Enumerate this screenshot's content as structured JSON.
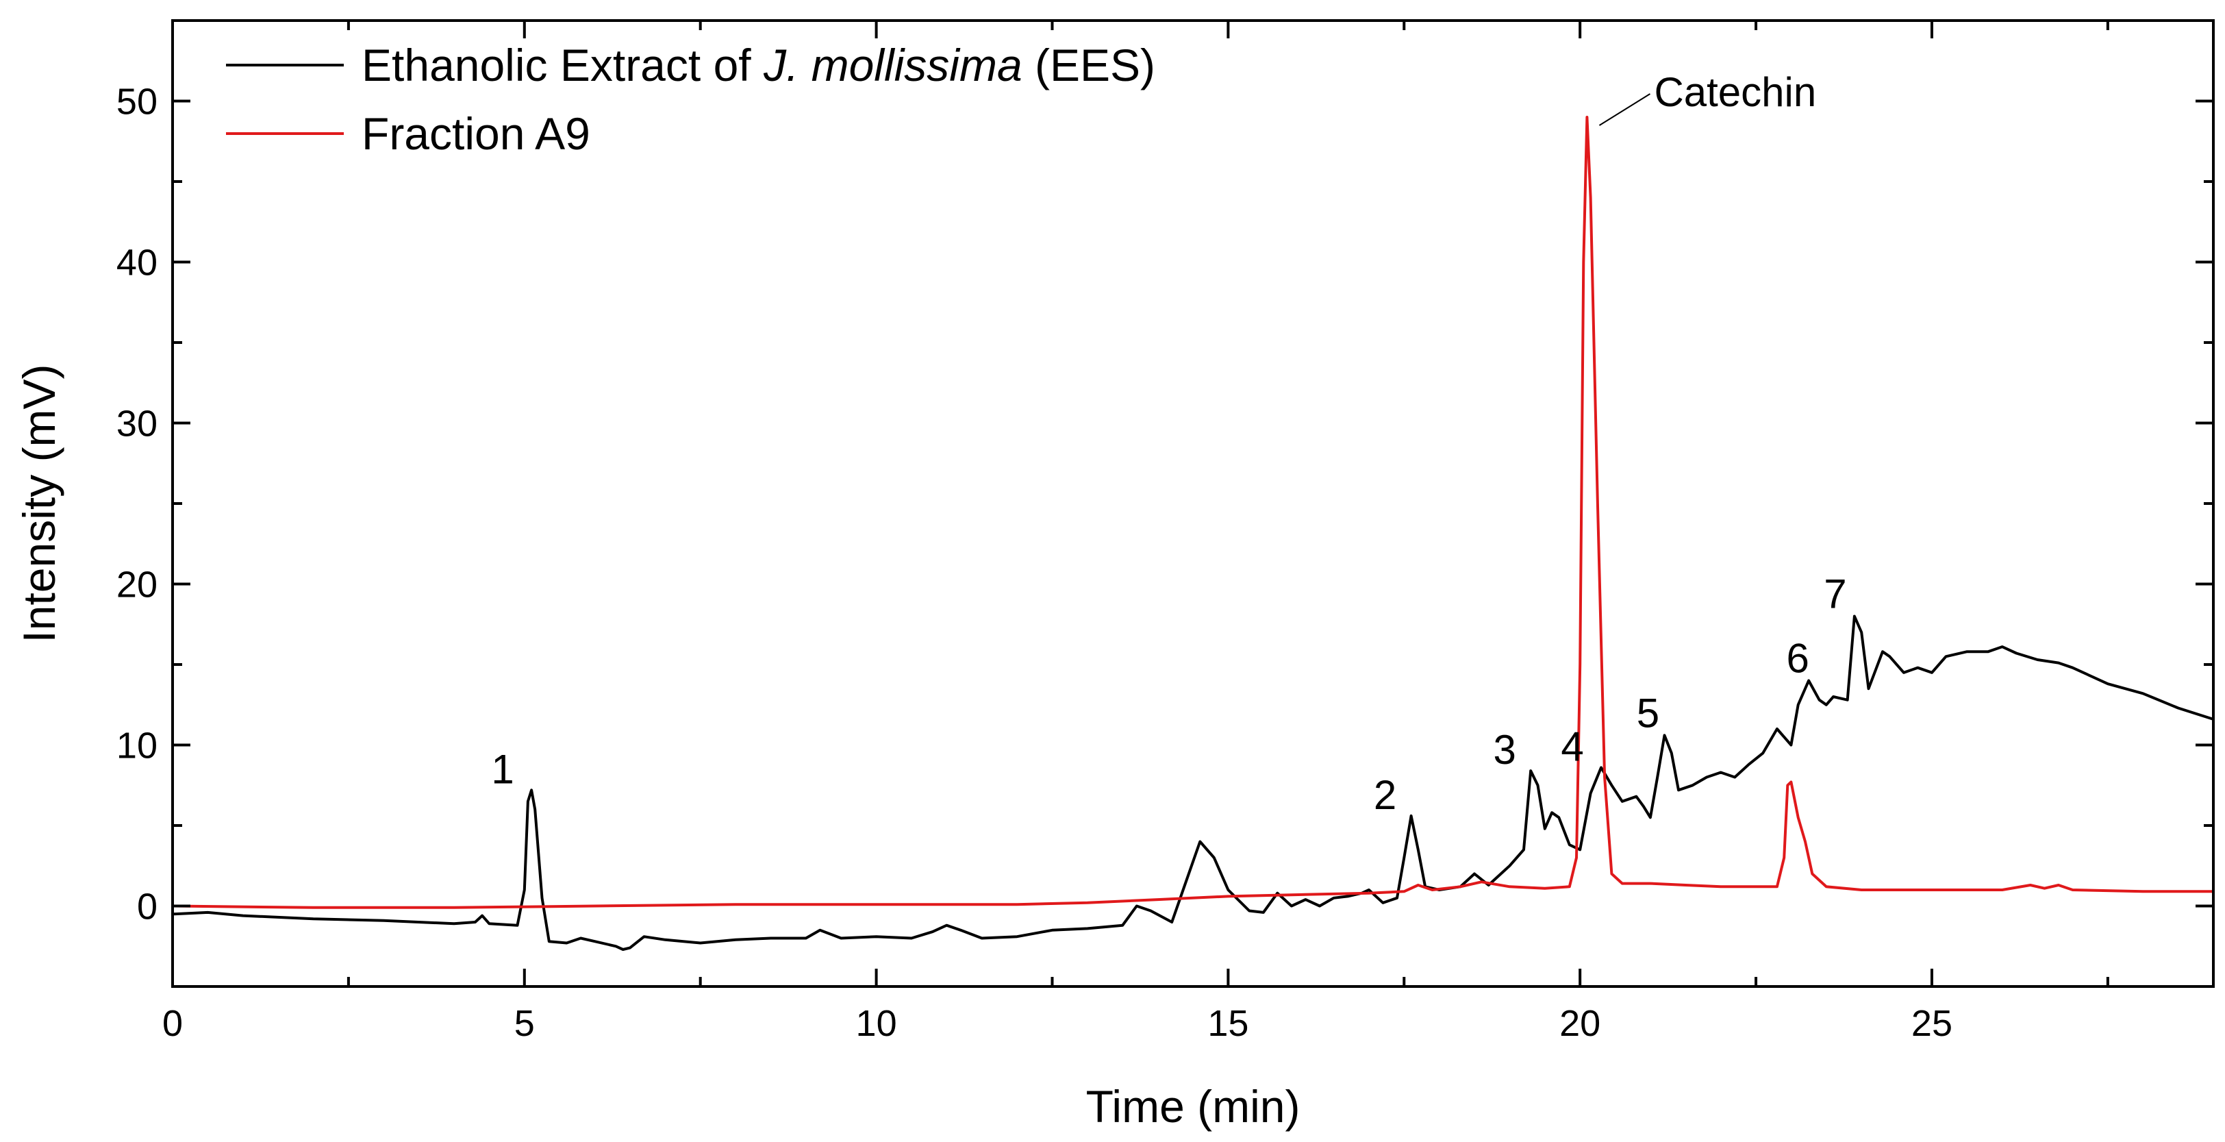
{
  "chart_data": {
    "type": "line",
    "title": "",
    "xlabel": "Time (min)",
    "ylabel": "Intensity (mV)",
    "xlim": [
      0,
      29
    ],
    "ylim": [
      -5,
      55
    ],
    "x_ticks": [
      0,
      5,
      10,
      15,
      20,
      25
    ],
    "x_tick_labels": [
      "0",
      "5",
      "10",
      "15",
      "20",
      "25"
    ],
    "y_ticks": [
      0,
      10,
      20,
      30,
      40,
      50
    ],
    "y_tick_labels": [
      "0",
      "10",
      "20",
      "30",
      "40",
      "50"
    ],
    "grid": false,
    "legend_position": "top-left",
    "legend": [
      {
        "series": 0,
        "parts": [
          {
            "text": "Ethanolic Extract of ",
            "italic": false
          },
          {
            "text": "J. mollissima",
            "italic": true
          },
          {
            "text": " (EES)",
            "italic": false
          }
        ]
      },
      {
        "series": 1,
        "parts": [
          {
            "text": "Fraction A9",
            "italic": false
          }
        ]
      }
    ],
    "series": [
      {
        "name": "Ethanolic Extract of J. mollissima (EES)",
        "color": "#000000",
        "points": [
          [
            0,
            -0.5
          ],
          [
            0.5,
            -0.4
          ],
          [
            1,
            -0.6
          ],
          [
            2,
            -0.8
          ],
          [
            3,
            -0.9
          ],
          [
            4,
            -1.1
          ],
          [
            4.3,
            -1.0
          ],
          [
            4.4,
            -0.6
          ],
          [
            4.5,
            -1.1
          ],
          [
            4.9,
            -1.2
          ],
          [
            5.0,
            1.0
          ],
          [
            5.05,
            6.5
          ],
          [
            5.1,
            7.2
          ],
          [
            5.15,
            6.0
          ],
          [
            5.25,
            0.5
          ],
          [
            5.35,
            -2.2
          ],
          [
            5.6,
            -2.3
          ],
          [
            5.8,
            -2.0
          ],
          [
            6,
            -2.2
          ],
          [
            6.3,
            -2.5
          ],
          [
            6.4,
            -2.7
          ],
          [
            6.5,
            -2.6
          ],
          [
            6.7,
            -1.9
          ],
          [
            7,
            -2.1
          ],
          [
            7.5,
            -2.3
          ],
          [
            8,
            -2.1
          ],
          [
            8.5,
            -2.0
          ],
          [
            9,
            -2.0
          ],
          [
            9.2,
            -1.5
          ],
          [
            9.5,
            -2.0
          ],
          [
            10,
            -1.9
          ],
          [
            10.5,
            -2.0
          ],
          [
            10.8,
            -1.6
          ],
          [
            11,
            -1.2
          ],
          [
            11.2,
            -1.5
          ],
          [
            11.5,
            -2.0
          ],
          [
            12,
            -1.9
          ],
          [
            12.5,
            -1.5
          ],
          [
            13,
            -1.4
          ],
          [
            13.5,
            -1.2
          ],
          [
            13.7,
            0.0
          ],
          [
            13.9,
            -0.3
          ],
          [
            14.2,
            -1.0
          ],
          [
            14.4,
            1.5
          ],
          [
            14.6,
            4.0
          ],
          [
            14.8,
            3.0
          ],
          [
            15.0,
            1.0
          ],
          [
            15.3,
            -0.3
          ],
          [
            15.5,
            -0.4
          ],
          [
            15.7,
            0.8
          ],
          [
            15.9,
            0.0
          ],
          [
            16.1,
            0.4
          ],
          [
            16.3,
            0.0
          ],
          [
            16.5,
            0.5
          ],
          [
            16.7,
            0.6
          ],
          [
            16.9,
            0.8
          ],
          [
            17.0,
            1.0
          ],
          [
            17.2,
            0.2
          ],
          [
            17.4,
            0.5
          ],
          [
            17.5,
            3.0
          ],
          [
            17.6,
            5.6
          ],
          [
            17.7,
            3.5
          ],
          [
            17.8,
            1.2
          ],
          [
            18.0,
            1.0
          ],
          [
            18.3,
            1.2
          ],
          [
            18.5,
            2.0
          ],
          [
            18.7,
            1.3
          ],
          [
            19.0,
            2.5
          ],
          [
            19.2,
            3.5
          ],
          [
            19.3,
            8.4
          ],
          [
            19.4,
            7.5
          ],
          [
            19.5,
            4.8
          ],
          [
            19.6,
            5.8
          ],
          [
            19.7,
            5.5
          ],
          [
            19.85,
            3.8
          ],
          [
            20.0,
            3.5
          ],
          [
            20.15,
            7.0
          ],
          [
            20.3,
            8.6
          ],
          [
            20.45,
            7.5
          ],
          [
            20.6,
            6.5
          ],
          [
            20.8,
            6.8
          ],
          [
            20.9,
            6.2
          ],
          [
            21.0,
            5.5
          ],
          [
            21.1,
            8.0
          ],
          [
            21.2,
            10.6
          ],
          [
            21.3,
            9.5
          ],
          [
            21.4,
            7.2
          ],
          [
            21.6,
            7.5
          ],
          [
            21.8,
            8.0
          ],
          [
            22.0,
            8.3
          ],
          [
            22.2,
            8.0
          ],
          [
            22.4,
            8.8
          ],
          [
            22.6,
            9.5
          ],
          [
            22.8,
            11.0
          ],
          [
            22.9,
            10.5
          ],
          [
            23.0,
            10.0
          ],
          [
            23.1,
            12.5
          ],
          [
            23.25,
            14.0
          ],
          [
            23.4,
            12.8
          ],
          [
            23.5,
            12.5
          ],
          [
            23.6,
            13.0
          ],
          [
            23.8,
            12.8
          ],
          [
            23.9,
            18.0
          ],
          [
            24.0,
            17.0
          ],
          [
            24.1,
            13.5
          ],
          [
            24.3,
            15.8
          ],
          [
            24.4,
            15.5
          ],
          [
            24.6,
            14.5
          ],
          [
            24.8,
            14.8
          ],
          [
            25.0,
            14.5
          ],
          [
            25.2,
            15.5
          ],
          [
            25.5,
            15.8
          ],
          [
            25.8,
            15.8
          ],
          [
            26.0,
            16.1
          ],
          [
            26.2,
            15.7
          ],
          [
            26.5,
            15.3
          ],
          [
            26.8,
            15.1
          ],
          [
            27,
            14.8
          ],
          [
            27.5,
            13.8
          ],
          [
            28,
            13.2
          ],
          [
            28.5,
            12.3
          ],
          [
            29,
            11.6
          ]
        ]
      },
      {
        "name": "Fraction A9",
        "color": "#e0191b",
        "points": [
          [
            0,
            0.0
          ],
          [
            2,
            -0.1
          ],
          [
            4,
            -0.1
          ],
          [
            6,
            0.0
          ],
          [
            8,
            0.1
          ],
          [
            10,
            0.1
          ],
          [
            12,
            0.1
          ],
          [
            13,
            0.2
          ],
          [
            14,
            0.4
          ],
          [
            15,
            0.6
          ],
          [
            16,
            0.7
          ],
          [
            17,
            0.8
          ],
          [
            17.5,
            0.9
          ],
          [
            17.7,
            1.3
          ],
          [
            17.9,
            1.0
          ],
          [
            18.3,
            1.2
          ],
          [
            18.6,
            1.5
          ],
          [
            19,
            1.2
          ],
          [
            19.5,
            1.1
          ],
          [
            19.85,
            1.2
          ],
          [
            19.95,
            3.0
          ],
          [
            20.0,
            15.0
          ],
          [
            20.05,
            40.0
          ],
          [
            20.1,
            49.0
          ],
          [
            20.15,
            44.0
          ],
          [
            20.25,
            25.0
          ],
          [
            20.35,
            8.0
          ],
          [
            20.45,
            2.0
          ],
          [
            20.6,
            1.4
          ],
          [
            21,
            1.4
          ],
          [
            21.5,
            1.3
          ],
          [
            22,
            1.2
          ],
          [
            22.5,
            1.2
          ],
          [
            22.8,
            1.2
          ],
          [
            22.9,
            3.0
          ],
          [
            22.95,
            7.5
          ],
          [
            23.0,
            7.7
          ],
          [
            23.1,
            5.5
          ],
          [
            23.2,
            4.0
          ],
          [
            23.3,
            2.0
          ],
          [
            23.5,
            1.2
          ],
          [
            24,
            1.0
          ],
          [
            25,
            1.0
          ],
          [
            26,
            1.0
          ],
          [
            26.4,
            1.3
          ],
          [
            26.6,
            1.1
          ],
          [
            26.8,
            1.3
          ],
          [
            27,
            1.0
          ],
          [
            28,
            0.9
          ],
          [
            29,
            0.9
          ]
        ]
      }
    ],
    "annotations": [
      {
        "text": "1",
        "x": 5.1,
        "y": 7.2
      },
      {
        "text": "2",
        "x": 17.6,
        "y": 5.6
      },
      {
        "text": "3",
        "x": 19.3,
        "y": 8.4
      },
      {
        "text": "4",
        "x": 20.3,
        "y": 8.6
      },
      {
        "text": "5",
        "x": 21.2,
        "y": 10.6
      },
      {
        "text": "6",
        "x": 23.25,
        "y": 14.0
      },
      {
        "text": "7",
        "x": 23.9,
        "y": 18.0
      },
      {
        "text": "Catechin",
        "x": 20.1,
        "y": 49.0
      }
    ]
  }
}
